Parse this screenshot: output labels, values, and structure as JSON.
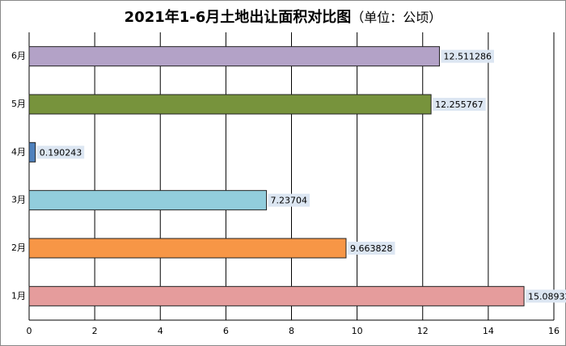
{
  "chart_data": {
    "type": "bar",
    "orientation": "horizontal",
    "title": "2021年1-6月土地出让面积对比图",
    "subtitle": "（单位：公顷）",
    "categories": [
      "1月",
      "2月",
      "3月",
      "4月",
      "5月",
      "6月"
    ],
    "values": [
      15.089329,
      9.663828,
      7.23704,
      0.190243,
      12.255767,
      12.511286
    ],
    "colors": [
      "#e59c9c",
      "#f79646",
      "#92cddc",
      "#4f81bd",
      "#77933c",
      "#b3a2c7"
    ],
    "xlim": [
      0,
      16
    ],
    "xticks": [
      0,
      2,
      4,
      6,
      8,
      10,
      12,
      14,
      16
    ],
    "grid": true
  }
}
